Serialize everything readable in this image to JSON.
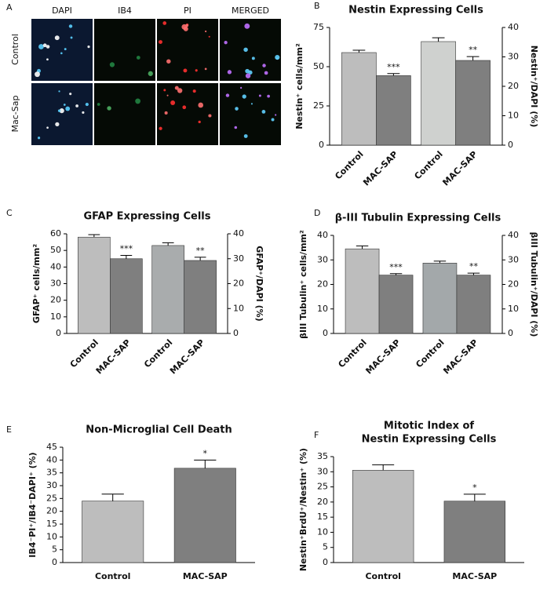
{
  "image_panel": {
    "panel": "A",
    "columns": [
      "DAPI",
      "IB4",
      "PI",
      "MERGED"
    ],
    "rows": [
      "Control",
      "Mac-Sap"
    ]
  },
  "chart_data": [
    {
      "type": "bar",
      "panel": "B",
      "title": [
        "Nestin Expressing Cells"
      ],
      "ylabel": "Nestin⁺ cells/mm²",
      "y2label": "Nestin⁺/DAPI (%)",
      "categories": [
        "Control",
        "MAC-SAP",
        "Control",
        "MAC-SAP"
      ],
      "series": [
        {
          "values": [
            59,
            44.3,
            null,
            null
          ],
          "errors": [
            1.5,
            1.3,
            null,
            null
          ]
        },
        {
          "axis": "y2",
          "values": [
            null,
            null,
            35.2,
            28.8
          ],
          "errors": [
            null,
            null,
            1.3,
            1.3
          ]
        }
      ],
      "colors": [
        "#bdbdbd",
        "#7f7f7f",
        "#cfd1cf",
        "#7f7f7f"
      ],
      "significance": [
        null,
        "***",
        null,
        "**"
      ],
      "ylim": [
        0,
        75
      ],
      "yticks": [
        0,
        25,
        50,
        75
      ],
      "y2lim": [
        0,
        40
      ],
      "y2ticks": [
        0,
        10,
        20,
        30,
        40
      ]
    },
    {
      "type": "bar",
      "panel": "C",
      "title": [
        "GFAP Expressing Cells"
      ],
      "ylabel": "GFAP⁺ cells/mm²",
      "y2label": "GFAP⁺/DAPI (%)",
      "categories": [
        "Control",
        "MAC-SAP",
        "Control",
        "MAC-SAP"
      ],
      "series": [
        {
          "values": [
            58,
            45,
            null,
            null
          ],
          "errors": [
            1.5,
            2,
            null,
            null
          ]
        },
        {
          "axis": "y2",
          "values": [
            null,
            null,
            35.3,
            29.3
          ],
          "errors": [
            null,
            null,
            1.1,
            1.3
          ]
        }
      ],
      "colors": [
        "#bdbdbd",
        "#7f7f7f",
        "#a9acad",
        "#7f7f7f"
      ],
      "significance": [
        null,
        "***",
        null,
        "**"
      ],
      "ylim": [
        0,
        60
      ],
      "yticks": [
        0,
        10,
        20,
        30,
        40,
        50,
        60
      ],
      "y2lim": [
        0,
        40
      ],
      "y2ticks": [
        0,
        10,
        20,
        30,
        40
      ]
    },
    {
      "type": "bar",
      "panel": "D",
      "title": [
        "β-III Tubulin Expressing Cells"
      ],
      "ylabel": "βIII Tubulin⁺ cells/mm²",
      "y2label": "βIII Tubulin⁺/DAPI (%)",
      "categories": [
        "Control",
        "MAC-SAP",
        "Control",
        "MAC-SAP"
      ],
      "series": [
        {
          "values": [
            34.5,
            23.8,
            null,
            null
          ],
          "errors": [
            1.2,
            0.6,
            null,
            null
          ]
        },
        {
          "axis": "y2",
          "values": [
            null,
            null,
            28.7,
            23.8
          ],
          "errors": [
            null,
            null,
            0.8,
            0.8
          ]
        }
      ],
      "colors": [
        "#bdbdbd",
        "#7f7f7f",
        "#a3a8aa",
        "#7f7f7f"
      ],
      "significance": [
        null,
        "***",
        null,
        "**"
      ],
      "ylim": [
        0,
        40
      ],
      "yticks": [
        0,
        10,
        20,
        30,
        40
      ],
      "y2lim": [
        0,
        40
      ],
      "y2ticks": [
        0,
        10,
        20,
        30,
        40
      ]
    },
    {
      "type": "bar",
      "panel": "E",
      "title": [
        "Non-Microglial Cell Death"
      ],
      "ylabel": "IB4⁻PI⁺/IB4⁻DAPI⁺ (%)",
      "categories": [
        "Control",
        "MAC-SAP"
      ],
      "series": [
        {
          "values": [
            24,
            36.8
          ],
          "errors": [
            2.7,
            3.2
          ]
        }
      ],
      "colors": [
        "#bdbdbd",
        "#7f7f7f"
      ],
      "significance": [
        null,
        "*"
      ],
      "ylim": [
        0,
        45
      ],
      "yticks": [
        0,
        5,
        10,
        15,
        20,
        25,
        30,
        35,
        40,
        45
      ]
    },
    {
      "type": "bar",
      "panel": "F",
      "title": [
        "Mitotic Index of",
        "Nestin Expressing Cells"
      ],
      "ylabel": "Nestin⁺BrdU⁺/Nestin⁺ (%)",
      "categories": [
        "Control",
        "MAC-SAP"
      ],
      "series": [
        {
          "values": [
            30.5,
            20.3
          ],
          "errors": [
            1.8,
            2.3
          ]
        }
      ],
      "colors": [
        "#bdbdbd",
        "#7f7f7f"
      ],
      "significance": [
        null,
        "*"
      ],
      "ylim": [
        0,
        35
      ],
      "yticks": [
        0,
        5,
        10,
        15,
        20,
        25,
        30,
        35
      ]
    }
  ]
}
